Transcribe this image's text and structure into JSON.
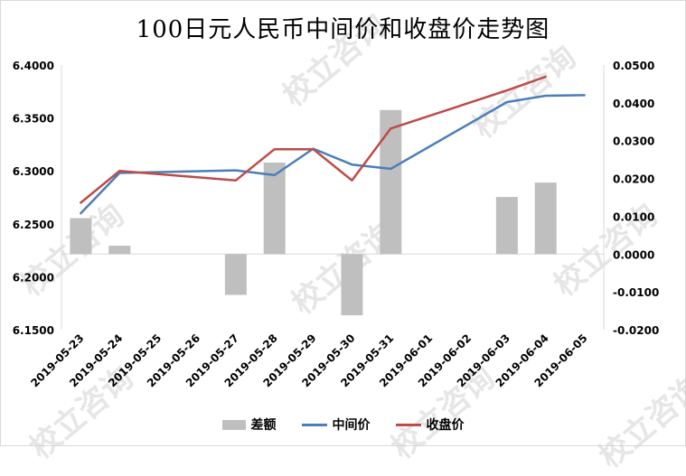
{
  "colors": {
    "bar": "#bfbfbf",
    "midpoint_line": "#4a7ebb",
    "close_line": "#be4b48",
    "axis": "#d9d9d9",
    "text": "#000000"
  },
  "watermark": "校立咨询",
  "chart_data": {
    "type": "bar+line",
    "title": "100日元人民币中间价和收盘价走势图",
    "categories": [
      "2019-05-23",
      "2019-05-24",
      "2019-05-25",
      "2019-05-26",
      "2019-05-27",
      "2019-05-28",
      "2019-05-29",
      "2019-05-30",
      "2019-05-31",
      "2019-06-01",
      "2019-06-02",
      "2019-06-03",
      "2019-06-04",
      "2019-06-05"
    ],
    "left_axis": {
      "min": 6.15,
      "max": 6.4,
      "step": 0.05,
      "tick_labels": [
        "6.1500",
        "6.2000",
        "6.2500",
        "6.3000",
        "6.3500",
        "6.4000"
      ]
    },
    "right_axis": {
      "min": -0.02,
      "max": 0.05,
      "step": 0.01,
      "tick_labels": [
        "-0.0200",
        "-0.0100",
        "0.0000",
        "0.0100",
        "0.0200",
        "0.0300",
        "0.0400",
        "0.0500"
      ]
    },
    "series": [
      {
        "name": "差额",
        "type": "bar",
        "axis": "right",
        "values": [
          0.0095,
          0.0022,
          null,
          null,
          -0.0108,
          0.0242,
          null,
          -0.0162,
          0.0381,
          null,
          null,
          0.0151,
          0.0189,
          null
        ]
      },
      {
        "name": "中间价",
        "type": "line",
        "axis": "left",
        "points": [
          [
            0,
            6.26
          ],
          [
            1,
            6.298
          ],
          [
            4,
            6.3005
          ],
          [
            5,
            6.296
          ],
          [
            6,
            6.321
          ],
          [
            7,
            6.306
          ],
          [
            8,
            6.302
          ],
          [
            11,
            6.365
          ],
          [
            12,
            6.371
          ],
          [
            13,
            6.3715
          ]
        ]
      },
      {
        "name": "收盘价",
        "type": "line",
        "axis": "left",
        "points": [
          [
            0,
            6.27
          ],
          [
            1,
            6.3
          ],
          [
            4,
            6.291
          ],
          [
            5,
            6.3205
          ],
          [
            6,
            6.3205
          ],
          [
            7,
            6.291
          ],
          [
            8,
            6.34
          ],
          [
            11,
            6.376
          ],
          [
            12,
            6.389
          ]
        ]
      }
    ],
    "legend_position": "bottom",
    "grid": false
  }
}
